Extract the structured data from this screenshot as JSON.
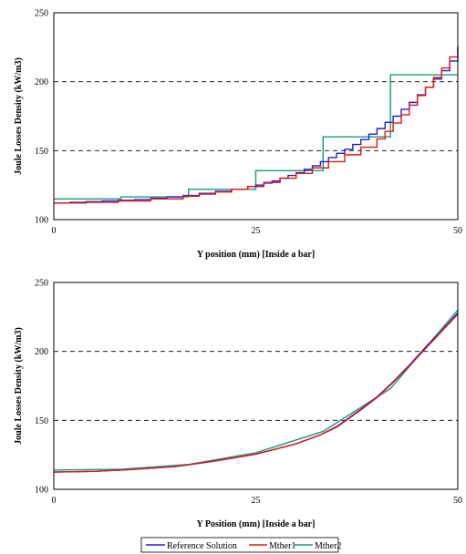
{
  "colors": {
    "reference": "#1f1fd0",
    "mther1": "#e01818",
    "mther2": "#1a9a7a",
    "grid": "#000000"
  },
  "chart_data": [
    {
      "type": "line",
      "title": "",
      "xlabel": "Y position (mm) [Inside a bar]",
      "ylabel": "Joule Losses Density (kW/m3)",
      "xlim": [
        0,
        50
      ],
      "ylim": [
        100,
        250
      ],
      "xticks": [
        "0",
        "25",
        "50"
      ],
      "yticks": [
        "100",
        "150",
        "200",
        "250"
      ],
      "grid": "horizontal dashed",
      "series": [
        {
          "name": "Reference Solution",
          "step": true,
          "x": [
            0,
            2,
            4,
            6,
            8,
            10,
            12,
            14,
            16,
            18,
            20,
            22,
            24,
            25,
            26,
            27,
            28,
            29,
            30,
            31,
            32,
            33,
            34,
            35,
            36,
            37,
            38,
            39,
            40,
            41,
            42,
            43,
            44,
            45,
            46,
            47,
            48,
            49,
            50
          ],
          "y": [
            112,
            112.5,
            113,
            113.5,
            114,
            114.5,
            115.5,
            116.5,
            117.5,
            119,
            120.5,
            122,
            124,
            125,
            126.5,
            128,
            130,
            132,
            134,
            136.5,
            139,
            142,
            145,
            148,
            151,
            154.5,
            158,
            162,
            166,
            170.5,
            175,
            180,
            185,
            190.5,
            196,
            202,
            208,
            215,
            225
          ]
        },
        {
          "name": "Mther1",
          "step": true,
          "x": [
            0,
            4,
            8,
            12,
            16,
            18,
            20,
            22,
            24,
            26,
            28,
            30,
            32,
            34,
            36,
            38,
            40,
            41,
            42,
            43,
            44,
            45,
            46,
            47,
            48,
            49,
            50
          ],
          "y": [
            112,
            112.5,
            113.5,
            115,
            117,
            118.5,
            120,
            122,
            124,
            127,
            130,
            133.5,
            137.5,
            142,
            147,
            152.5,
            158.5,
            164,
            170,
            176,
            183,
            190,
            196,
            203,
            210,
            218,
            226
          ]
        },
        {
          "name": "Mther2",
          "step": true,
          "x": [
            0,
            8.33,
            16.67,
            25,
            33.33,
            41.67,
            50
          ],
          "y": [
            115,
            116.5,
            122,
            135.5,
            160,
            205,
            205
          ]
        }
      ]
    },
    {
      "type": "line",
      "title": "",
      "xlabel": "Y Position (mm) [Inside a bar]",
      "ylabel": "Joule Losses Density (kW/m3)",
      "xlim": [
        0,
        50
      ],
      "ylim": [
        100,
        250
      ],
      "xticks": [
        "0",
        "25",
        "50"
      ],
      "yticks": [
        "100",
        "150",
        "200",
        "250"
      ],
      "grid": "horizontal dashed",
      "series": [
        {
          "name": "Reference Solution",
          "x": [
            0,
            5,
            10,
            15,
            20,
            25,
            30,
            33,
            35,
            38,
            40,
            42,
            44,
            46,
            48,
            50
          ],
          "y": [
            112.5,
            113,
            114.5,
            116.5,
            120.5,
            125.5,
            133,
            139.5,
            145.5,
            158,
            167,
            178,
            190,
            203,
            215,
            228
          ]
        },
        {
          "name": "Mther1",
          "x": [
            0,
            5,
            10,
            15,
            20,
            25,
            30,
            33,
            35,
            38,
            40,
            42,
            44,
            46,
            48,
            50
          ],
          "y": [
            112.5,
            113,
            114.5,
            116.5,
            120.5,
            125.5,
            133,
            139.5,
            145,
            157.5,
            166.5,
            177.5,
            189.5,
            202,
            214.5,
            227
          ]
        },
        {
          "name": "Mther2",
          "x": [
            0,
            8.33,
            16.67,
            25,
            33.33,
            41.67,
            50
          ],
          "y": [
            114,
            114.5,
            118,
            126.5,
            142,
            173,
            230
          ]
        }
      ]
    }
  ]
}
